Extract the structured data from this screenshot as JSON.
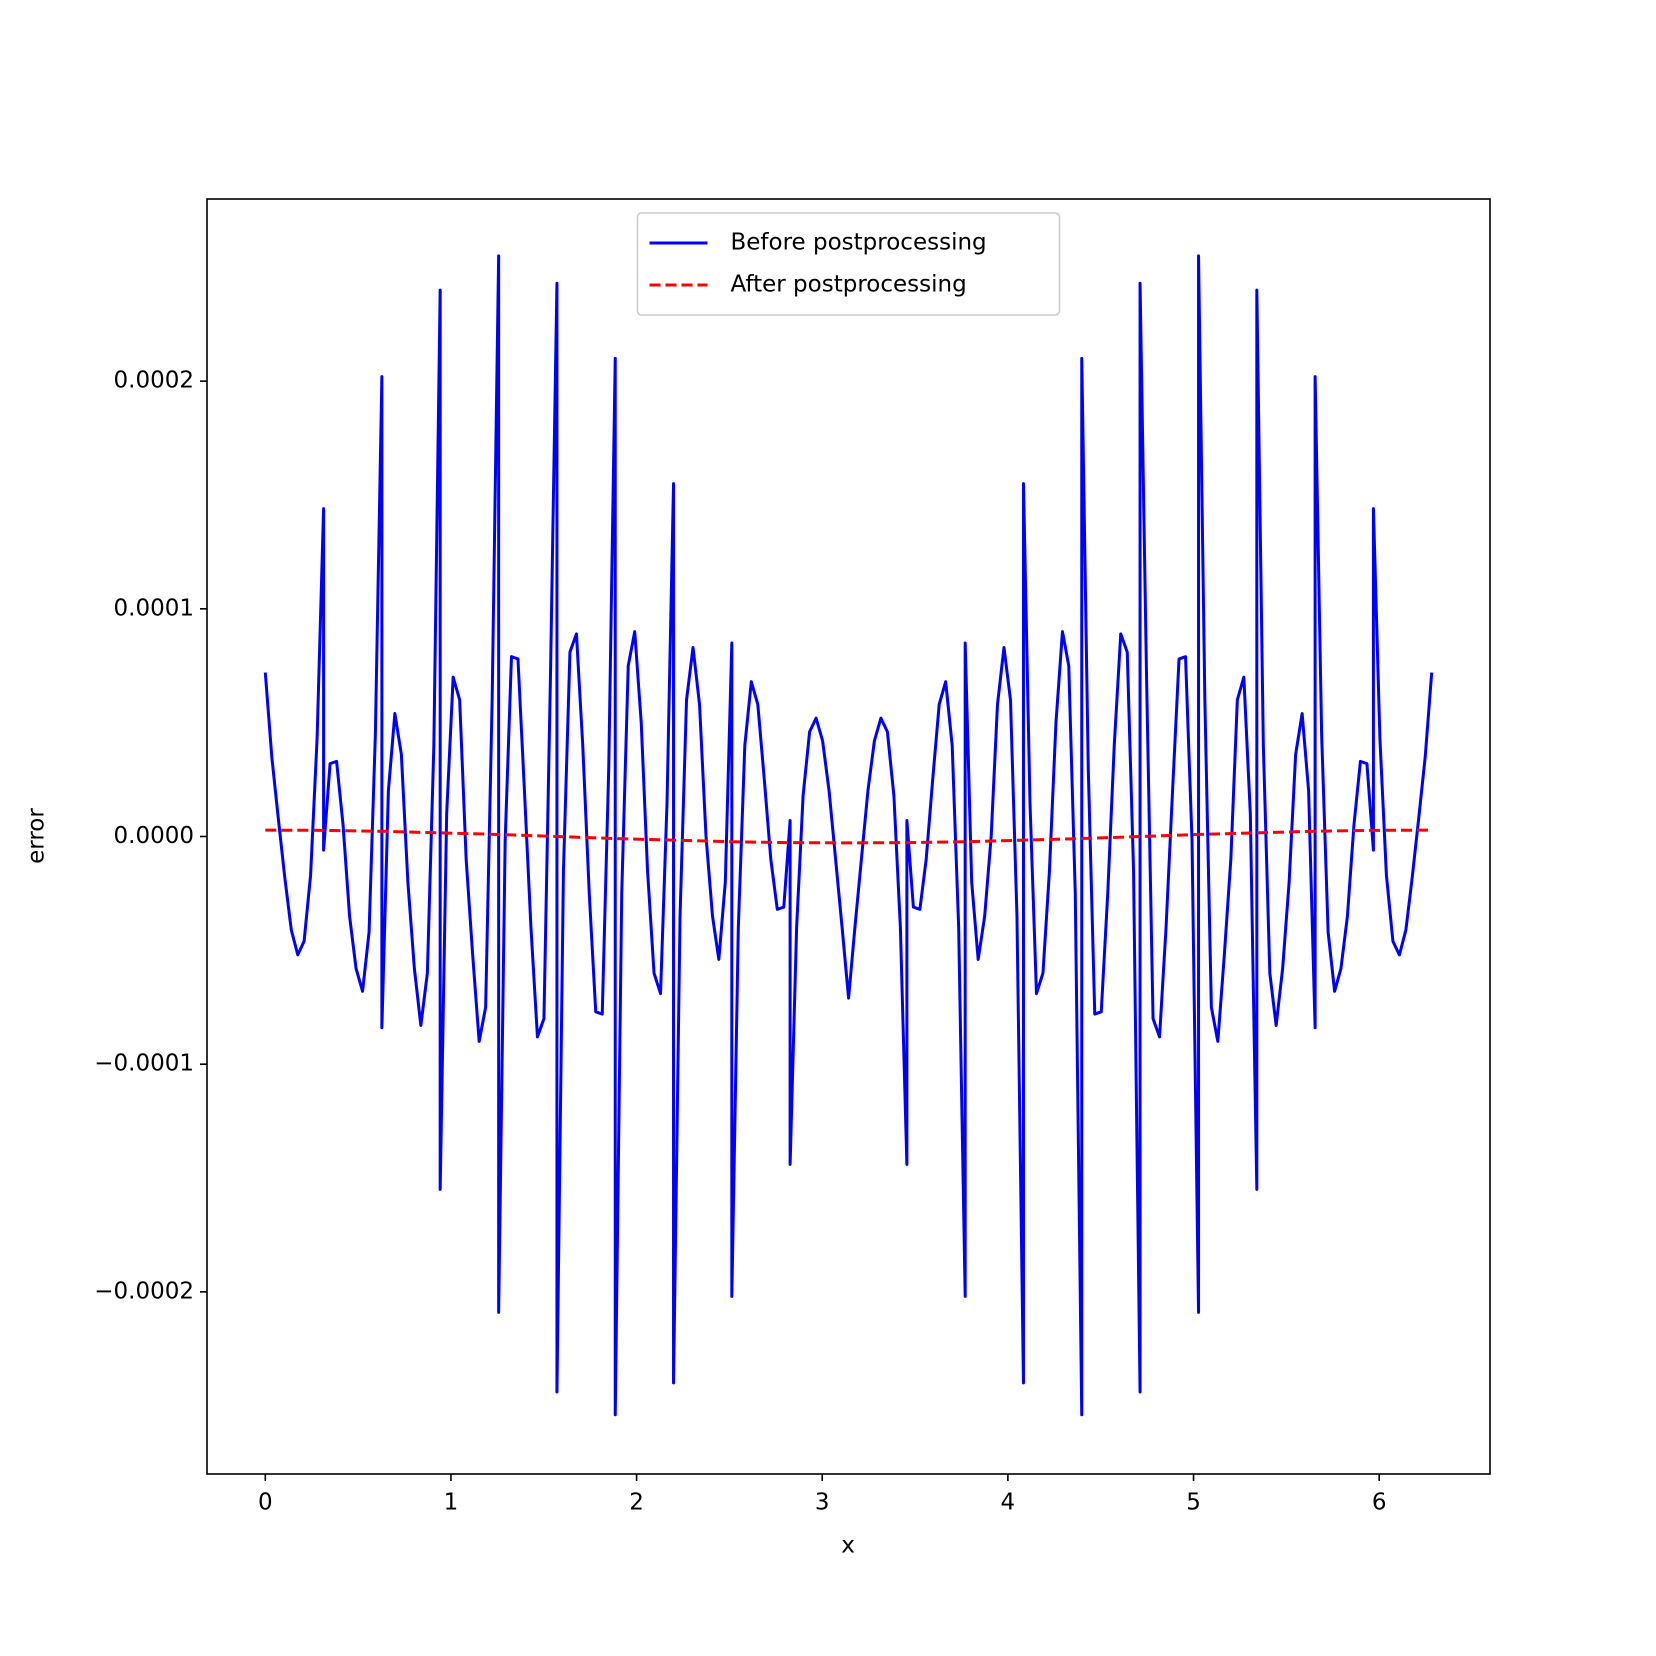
{
  "chart_data": {
    "type": "line",
    "xlabel": "x",
    "ylabel": "error",
    "xlim": [
      -0.314,
      6.597
    ],
    "ylim": [
      -0.00028,
      0.00028
    ],
    "xticks": [
      0,
      1,
      2,
      3,
      4,
      5,
      6
    ],
    "yticks": [
      {
        "value": -0.0002,
        "label": "−0.0002"
      },
      {
        "value": -0.0001,
        "label": "−0.0001"
      },
      {
        "value": 0,
        "label": "0.0000"
      },
      0.0001,
      0.0002
    ],
    "grid": false,
    "legend": "upper center",
    "series": [
      {
        "name": "Before postprocessing",
        "color": "#0000ff",
        "style": "solid",
        "x": [
          0,
          0.035,
          0.07,
          0.105,
          0.14,
          0.175,
          0.209,
          0.244,
          0.279,
          0.314,
          0.314,
          0.349,
          0.384,
          0.419,
          0.454,
          0.489,
          0.524,
          0.559,
          0.593,
          0.628,
          0.628,
          0.663,
          0.698,
          0.733,
          0.768,
          0.803,
          0.838,
          0.873,
          0.908,
          0.942,
          0.942,
          0.977,
          1.012,
          1.047,
          1.082,
          1.117,
          1.152,
          1.187,
          1.222,
          1.257,
          1.257,
          1.292,
          1.326,
          1.361,
          1.396,
          1.431,
          1.466,
          1.501,
          1.536,
          1.571,
          1.571,
          1.606,
          1.641,
          1.676,
          1.71,
          1.745,
          1.78,
          1.815,
          1.85,
          1.885,
          1.885,
          1.92,
          1.955,
          1.99,
          2.025,
          2.059,
          2.094,
          2.129,
          2.164,
          2.199,
          2.199,
          2.234,
          2.269,
          2.304,
          2.339,
          2.374,
          2.409,
          2.443,
          2.478,
          2.513,
          2.513,
          2.548,
          2.583,
          2.618,
          2.653,
          2.688,
          2.723,
          2.758,
          2.793,
          2.827,
          2.827,
          2.862,
          2.897,
          2.932,
          2.967,
          3.002,
          3.037,
          3.072,
          3.107,
          3.142,
          3.142,
          3.176,
          3.211,
          3.246,
          3.281,
          3.316,
          3.351,
          3.386,
          3.421,
          3.456,
          3.456,
          3.491,
          3.526,
          3.56,
          3.595,
          3.63,
          3.665,
          3.7,
          3.735,
          3.77,
          3.77,
          3.805,
          3.84,
          3.875,
          3.91,
          3.944,
          3.979,
          4.014,
          4.049,
          4.084,
          4.084,
          4.119,
          4.154,
          4.189,
          4.224,
          4.259,
          4.294,
          4.328,
          4.363,
          4.398,
          4.398,
          4.433,
          4.468,
          4.503,
          4.538,
          4.573,
          4.608,
          4.643,
          4.677,
          4.712,
          4.712,
          4.747,
          4.782,
          4.817,
          4.852,
          4.887,
          4.922,
          4.957,
          4.992,
          5.027,
          5.027,
          5.061,
          5.096,
          5.131,
          5.166,
          5.201,
          5.236,
          5.271,
          5.306,
          5.341,
          5.341,
          5.376,
          5.411,
          5.445,
          5.48,
          5.515,
          5.55,
          5.585,
          5.62,
          5.655,
          5.655,
          5.69,
          5.725,
          5.76,
          5.794,
          5.829,
          5.864,
          5.899,
          5.934,
          5.969,
          5.969,
          6.004,
          6.039,
          6.074,
          6.109,
          6.144,
          6.178,
          6.213,
          6.248,
          6.283
        ],
        "values": [
          7.2e-05,
          3.5e-05,
          8e-06,
          -1.8e-05,
          -4.1e-05,
          -5.2e-05,
          -4.6e-05,
          -1.7e-05,
          4.3e-05,
          0.000144,
          -6e-06,
          3.2e-05,
          3.3e-05,
          5e-06,
          -3.5e-05,
          -5.8e-05,
          -6.8e-05,
          -4.2e-05,
          4.5e-05,
          0.000202,
          -8.4e-05,
          2e-05,
          5.4e-05,
          3.6e-05,
          -2e-05,
          -5.8e-05,
          -8.3e-05,
          -6e-05,
          4e-05,
          0.00024,
          -0.000155,
          1e-05,
          7e-05,
          6e-05,
          -1e-05,
          -5.2e-05,
          -9e-05,
          -7.5e-05,
          6e-05,
          0.000255,
          -0.000209,
          -2e-06,
          7.9e-05,
          7.8e-05,
          2e-05,
          -4e-05,
          -8.8e-05,
          -8e-05,
          7e-05,
          0.000243,
          -0.000244,
          -1.5e-05,
          8.1e-05,
          8.9e-05,
          4e-05,
          -2.5e-05,
          -7.7e-05,
          -7.8e-05,
          3e-05,
          0.00021,
          -0.000254,
          -2.5e-05,
          7.5e-05,
          9e-05,
          5e-05,
          -1.5e-05,
          -6e-05,
          -6.9e-05,
          1.5e-05,
          0.000155,
          -0.00024,
          -3.5e-05,
          6e-05,
          8.3e-05,
          5.8e-05,
          0,
          -3.5e-05,
          -5.4e-05,
          -2e-05,
          8.5e-05,
          -0.000202,
          -4e-05,
          4e-05,
          6.8e-05,
          5.8e-05,
          2.5e-05,
          -1e-05,
          -3.2e-05,
          -3.1e-05,
          7e-06,
          -0.000144,
          -4e-05,
          1.8e-05,
          4.6e-05,
          5.2e-05,
          4.2e-05,
          2e-05,
          -1e-05,
          -4e-05,
          -7.1e-05,
          -7.1e-05,
          -4e-05,
          -1e-05,
          2e-05,
          4.2e-05,
          5.2e-05,
          4.6e-05,
          1.8e-05,
          -4e-05,
          -0.000144,
          7e-06,
          -3.1e-05,
          -3.2e-05,
          -1e-05,
          2.5e-05,
          5.8e-05,
          6.8e-05,
          4e-05,
          -4e-05,
          -0.000202,
          8.5e-05,
          -2e-05,
          -5.4e-05,
          -3.5e-05,
          0,
          5.8e-05,
          8.3e-05,
          6e-05,
          -3.5e-05,
          -0.00024,
          0.000155,
          1.5e-05,
          -6.9e-05,
          -6e-05,
          -1.5e-05,
          5e-05,
          9e-05,
          7.5e-05,
          -2.5e-05,
          -0.000254,
          0.00021,
          3e-05,
          -7.8e-05,
          -7.7e-05,
          -2.5e-05,
          4e-05,
          8.9e-05,
          8.1e-05,
          -1.5e-05,
          -0.000244,
          0.000243,
          7e-05,
          -8e-05,
          -8.8e-05,
          -4e-05,
          2e-05,
          7.8e-05,
          7.9e-05,
          -2e-06,
          -0.000209,
          0.000255,
          6e-05,
          -7.5e-05,
          -9e-05,
          -5.2e-05,
          -1e-05,
          6e-05,
          7e-05,
          1e-05,
          -0.000155,
          0.00024,
          4e-05,
          -6e-05,
          -8.3e-05,
          -5.8e-05,
          -2e-05,
          3.6e-05,
          5.4e-05,
          2e-05,
          -8.4e-05,
          0.000202,
          4.5e-05,
          -4.2e-05,
          -6.8e-05,
          -5.8e-05,
          -3.5e-05,
          5e-06,
          3.3e-05,
          3.2e-05,
          -6e-06,
          0.000144,
          4.3e-05,
          -1.7e-05,
          -4.6e-05,
          -5.2e-05,
          -4.1e-05,
          -1.8e-05,
          8e-06,
          3.5e-05,
          7.2e-05
        ]
      },
      {
        "name": "After postprocessing",
        "color": "#ff0000",
        "style": "dashed",
        "x": [
          0,
          0.314,
          0.628,
          0.942,
          1.257,
          1.571,
          1.885,
          2.199,
          2.513,
          2.827,
          3.142,
          3.456,
          3.77,
          4.084,
          4.398,
          4.712,
          5.027,
          5.341,
          5.655,
          5.969,
          6.283
        ],
        "values": [
          2.8e-06,
          2.7e-06,
          2.3e-06,
          1.6e-06,
          9e-07,
          0,
          -9e-07,
          -1.6e-06,
          -2.3e-06,
          -2.7e-06,
          -2.8e-06,
          -2.7e-06,
          -2.3e-06,
          -1.6e-06,
          -9e-07,
          0,
          9e-07,
          1.6e-06,
          2.3e-06,
          2.7e-06,
          2.8e-06
        ]
      }
    ]
  }
}
